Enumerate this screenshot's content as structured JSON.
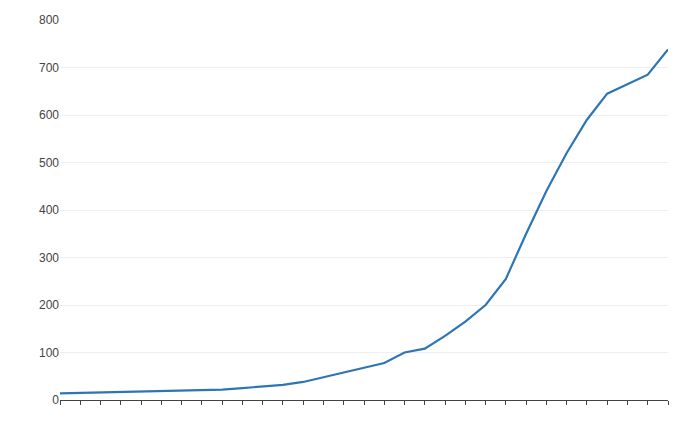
{
  "chart_data": {
    "type": "line",
    "categories": [
      null,
      null,
      null,
      null,
      null,
      null,
      null,
      null,
      null,
      null,
      null,
      null,
      null,
      null,
      null,
      null,
      null,
      null,
      null,
      null,
      null,
      null,
      null,
      null,
      null,
      null,
      null,
      null,
      null,
      null,
      null
    ],
    "values": [
      14,
      15,
      15,
      16,
      17,
      18,
      19,
      20,
      22,
      25,
      28,
      32,
      38,
      48,
      58,
      68,
      78,
      100,
      108,
      135,
      165,
      200,
      255,
      350,
      440,
      520,
      590,
      645,
      665,
      685,
      738
    ],
    "color": "#2e75b6",
    "ylim": [
      0,
      800
    ],
    "yticks": [
      0,
      100,
      200,
      300,
      400,
      500,
      600,
      700,
      800
    ],
    "grid": true,
    "tick_labels": "y"
  }
}
